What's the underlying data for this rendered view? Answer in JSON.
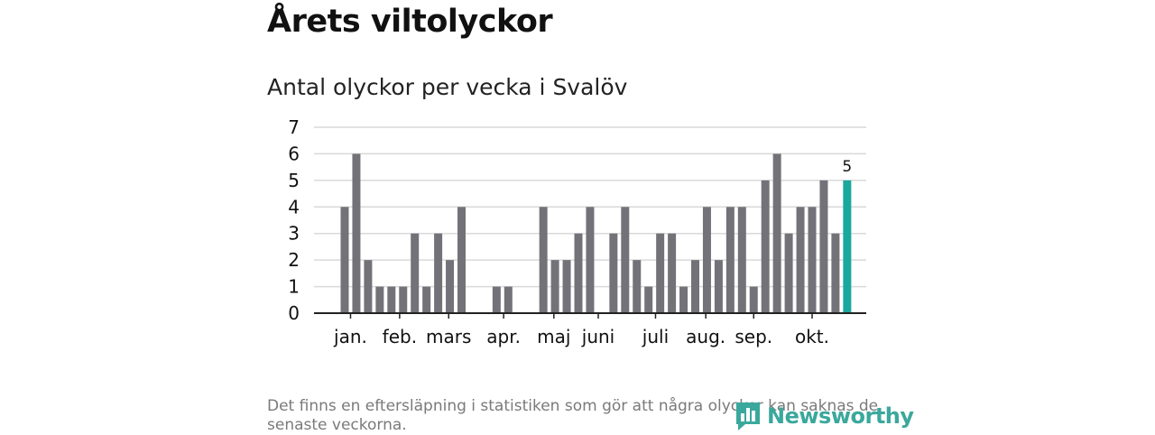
{
  "header": {
    "title": "Årets viltolyckor"
  },
  "chart_data": {
    "type": "bar",
    "title": "Antal olyckor per vecka i Svalöv",
    "xlabel": "",
    "ylabel": "",
    "ylim": [
      0,
      7
    ],
    "yticks": [
      0,
      1,
      2,
      3,
      4,
      5,
      6,
      7
    ],
    "weeks": [
      1,
      2,
      3,
      4,
      5,
      6,
      7,
      8,
      9,
      10,
      11,
      12,
      13,
      14,
      15,
      16,
      17,
      18,
      19,
      20,
      21,
      22,
      23,
      24,
      25,
      26,
      27,
      28,
      29,
      30,
      31,
      32,
      33,
      34,
      35,
      36,
      37,
      38,
      39,
      40,
      41,
      42,
      43,
      44
    ],
    "values": [
      4,
      6,
      2,
      1,
      1,
      1,
      3,
      1,
      3,
      2,
      4,
      0,
      0,
      1,
      1,
      0,
      0,
      4,
      2,
      2,
      3,
      4,
      0,
      3,
      4,
      2,
      1,
      3,
      3,
      1,
      2,
      4,
      2,
      4,
      4,
      1,
      5,
      6,
      3,
      4,
      4,
      5,
      3,
      5
    ],
    "highlight_index": 43,
    "highlight_label": "5",
    "bar_color": "#737278",
    "highlight_color": "#1aa79e",
    "months": [
      {
        "label": "jan.",
        "week": 1.5
      },
      {
        "label": "feb.",
        "week": 5.7
      },
      {
        "label": "mars",
        "week": 9.9
      },
      {
        "label": "apr.",
        "week": 14.6
      },
      {
        "label": "maj",
        "week": 18.9
      },
      {
        "label": "juni",
        "week": 22.7
      },
      {
        "label": "juli",
        "week": 27.6
      },
      {
        "label": "aug.",
        "week": 31.9
      },
      {
        "label": "sep.",
        "week": 36.0
      },
      {
        "label": "okt.",
        "week": 41.0
      }
    ]
  },
  "footer": {
    "note": "Det finns en eftersläpning i statistiken som gör att några olyckor kan saknas de senaste veckorna.",
    "logo_text": "Newsworthy",
    "logo_icon": "bar-chart-icon",
    "logo_color": "#3aa89c"
  }
}
